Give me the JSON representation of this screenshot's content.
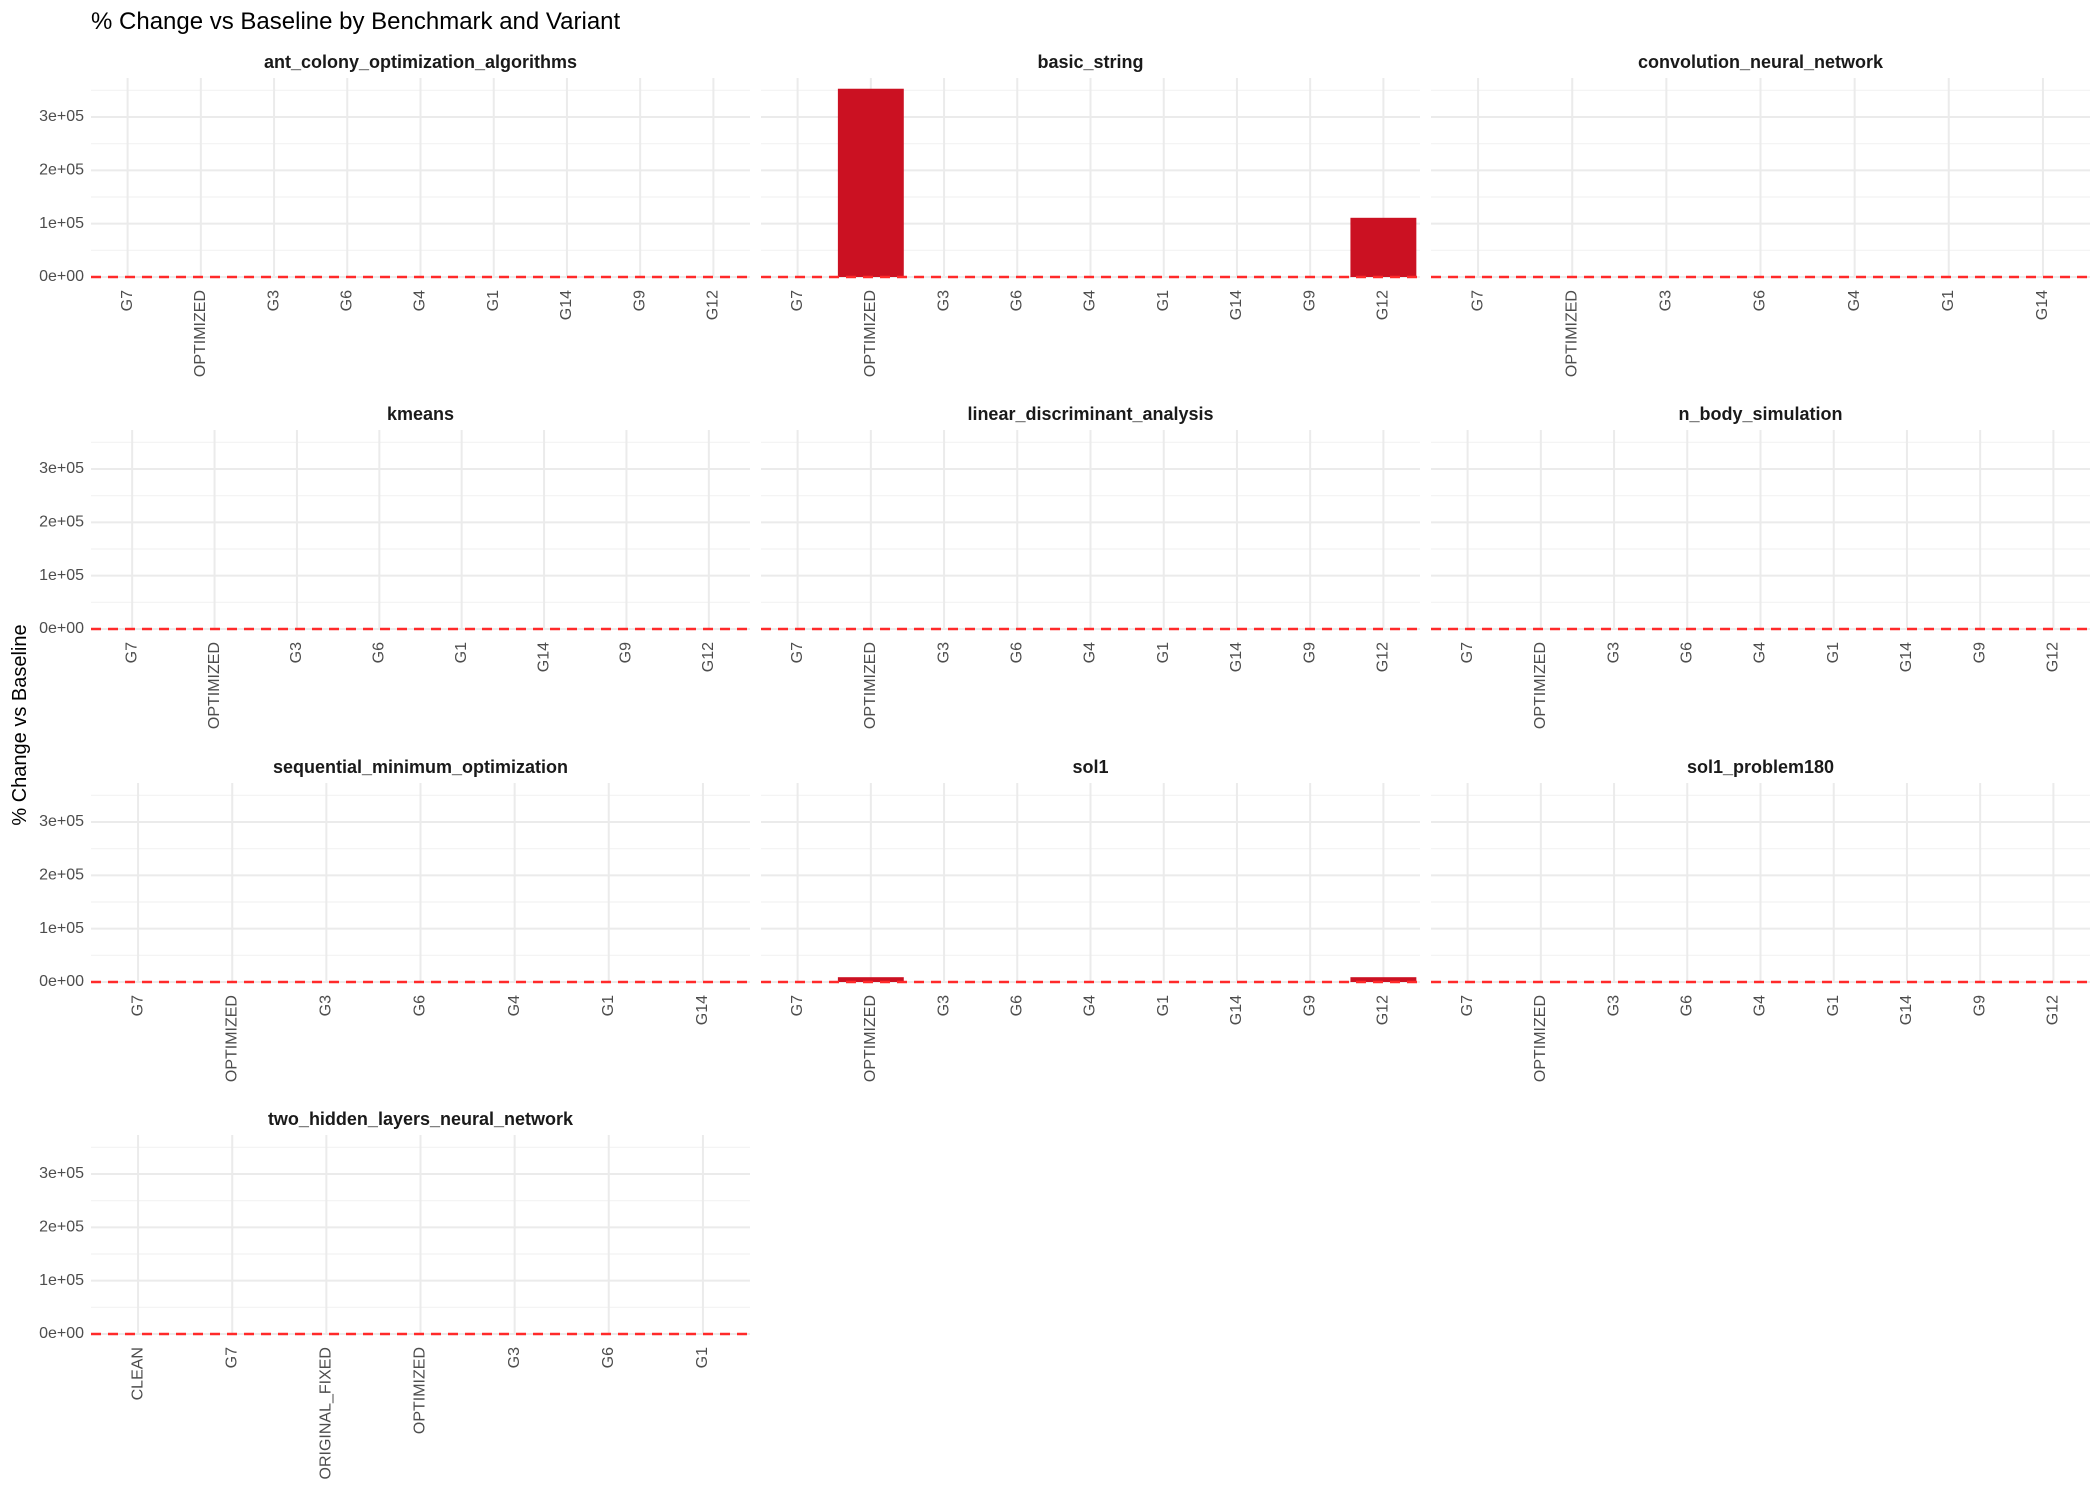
{
  "chart_data": {
    "type": "bar",
    "title": "% Change vs Baseline by Benchmark and Variant",
    "ylabel": "% Change vs Baseline",
    "xlabel": "",
    "ylim": [
      0,
      365000
    ],
    "y_ticks": [
      0,
      100000,
      200000,
      300000
    ],
    "y_tick_labels": [
      "0e+00",
      "1e+05",
      "2e+05",
      "3e+05"
    ],
    "bar_color": "#cb1122",
    "reference_line": {
      "y": 0,
      "color": "#ff2a2a",
      "style": "dashed"
    },
    "grid": true,
    "layout": {
      "columns": 3,
      "rows": 4
    },
    "panels": [
      {
        "name": "ant_colony_optimization_algorithms",
        "categories": [
          "G7",
          "OPTIMIZED",
          "G3",
          "G6",
          "G4",
          "G1",
          "G14",
          "G9",
          "G12"
        ],
        "values": [
          0,
          0,
          0,
          0,
          0,
          0,
          0,
          0,
          0
        ]
      },
      {
        "name": "basic_string",
        "categories": [
          "G7",
          "OPTIMIZED",
          "G3",
          "G6",
          "G4",
          "G1",
          "G14",
          "G9",
          "G12"
        ],
        "values": [
          0,
          353000,
          0,
          0,
          0,
          0,
          0,
          0,
          111000
        ]
      },
      {
        "name": "convolution_neural_network",
        "categories": [
          "G7",
          "OPTIMIZED",
          "G3",
          "G6",
          "G4",
          "G1",
          "G14"
        ],
        "values": [
          0,
          0,
          0,
          0,
          0,
          0,
          0
        ]
      },
      {
        "name": "kmeans",
        "categories": [
          "G7",
          "OPTIMIZED",
          "G3",
          "G6",
          "G1",
          "G14",
          "G9",
          "G12"
        ],
        "values": [
          0,
          0,
          0,
          0,
          0,
          0,
          0,
          0
        ]
      },
      {
        "name": "linear_discriminant_analysis",
        "categories": [
          "G7",
          "OPTIMIZED",
          "G3",
          "G6",
          "G4",
          "G1",
          "G14",
          "G9",
          "G12"
        ],
        "values": [
          0,
          0,
          0,
          0,
          0,
          0,
          0,
          0,
          0
        ]
      },
      {
        "name": "n_body_simulation",
        "categories": [
          "G7",
          "OPTIMIZED",
          "G3",
          "G6",
          "G4",
          "G1",
          "G14",
          "G9",
          "G12"
        ],
        "values": [
          0,
          0,
          0,
          0,
          0,
          0,
          0,
          0,
          0
        ]
      },
      {
        "name": "sequential_minimum_optimization",
        "categories": [
          "G7",
          "OPTIMIZED",
          "G3",
          "G6",
          "G4",
          "G1",
          "G14"
        ],
        "values": [
          0,
          0,
          0,
          0,
          0,
          0,
          0
        ]
      },
      {
        "name": "sol1",
        "categories": [
          "G7",
          "OPTIMIZED",
          "G3",
          "G6",
          "G4",
          "G1",
          "G14",
          "G9",
          "G12"
        ],
        "values": [
          0,
          9000,
          0,
          0,
          0,
          0,
          0,
          0,
          9000
        ]
      },
      {
        "name": "sol1_problem180",
        "categories": [
          "G7",
          "OPTIMIZED",
          "G3",
          "G6",
          "G4",
          "G1",
          "G14",
          "G9",
          "G12"
        ],
        "values": [
          0,
          0,
          0,
          0,
          0,
          0,
          0,
          0,
          0
        ]
      },
      {
        "name": "two_hidden_layers_neural_network",
        "categories": [
          "CLEAN",
          "G7",
          "ORIGINAL_FIXED",
          "OPTIMIZED",
          "G3",
          "G6",
          "G1"
        ],
        "values": [
          0,
          0,
          0,
          0,
          0,
          0,
          0
        ]
      }
    ]
  }
}
